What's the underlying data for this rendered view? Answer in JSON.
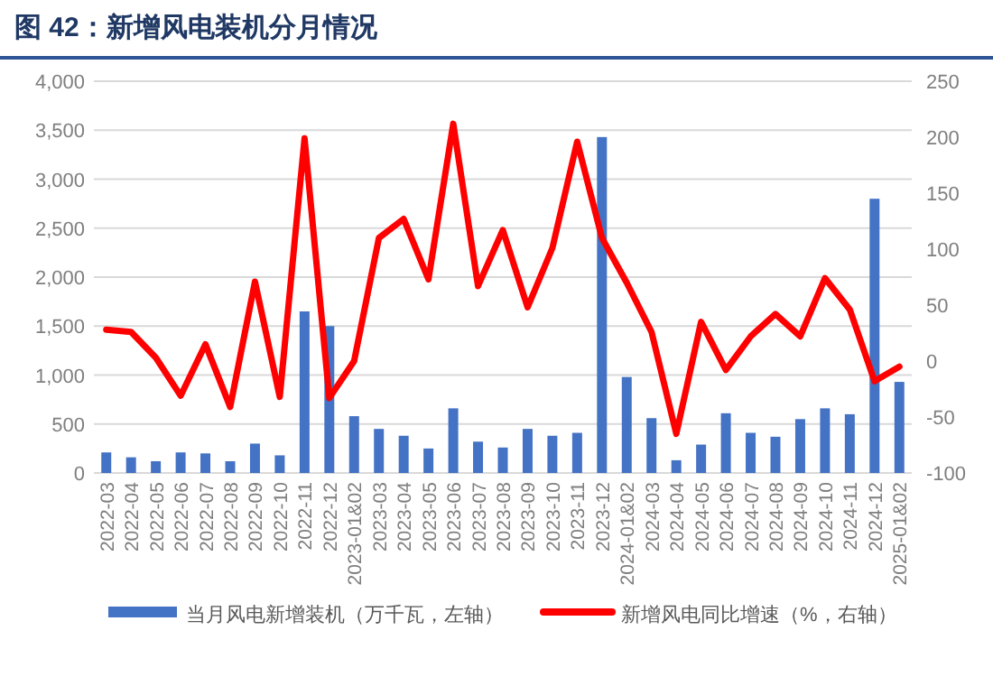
{
  "chart_data": {
    "type": "bar",
    "title": "图 42：新增风电装机分月情况",
    "categories": [
      "2022-03",
      "2022-04",
      "2022-05",
      "2022-06",
      "2022-07",
      "2022-08",
      "2022-09",
      "2022-10",
      "2022-11",
      "2022-12",
      "2023-01&02",
      "2023-03",
      "2023-04",
      "2023-05",
      "2023-06",
      "2023-07",
      "2023-08",
      "2023-09",
      "2023-10",
      "2023-11",
      "2023-12",
      "2024-01&02",
      "2024-03",
      "2024-04",
      "2024-05",
      "2024-06",
      "2024-07",
      "2024-08",
      "2024-09",
      "2024-10",
      "2024-11",
      "2024-12",
      "2025-01&02"
    ],
    "series": [
      {
        "name": "当月风电新增装机（万千瓦，左轴）",
        "color": "#4472c4",
        "values": [
          210,
          160,
          120,
          210,
          200,
          120,
          300,
          180,
          1650,
          1500,
          580,
          450,
          380,
          250,
          660,
          320,
          260,
          450,
          380,
          410,
          3430,
          980,
          560,
          130,
          290,
          610,
          410,
          370,
          550,
          660,
          600,
          2800,
          930
        ]
      },
      {
        "name": "新增风电同比增速（%，右轴）",
        "type": "line",
        "axis": "y2",
        "color": "#ff0000",
        "values": [
          28,
          26,
          3,
          -31,
          15,
          -41,
          71,
          -32,
          199,
          -33,
          0,
          110,
          127,
          73,
          212,
          67,
          117,
          48,
          101,
          196,
          110,
          70,
          26,
          -65,
          35,
          -8,
          22,
          42,
          22,
          74,
          46,
          -18,
          -5
        ]
      }
    ],
    "ylim": [
      0,
      4000
    ],
    "yticks": [
      {
        "value": 0,
        "label": "0"
      },
      {
        "value": 500,
        "label": "500"
      },
      {
        "value": 1000,
        "label": "1,000"
      },
      {
        "value": 1500,
        "label": "1,500"
      },
      {
        "value": 2000,
        "label": "2,000"
      },
      {
        "value": 2500,
        "label": "2,500"
      },
      {
        "value": 3000,
        "label": "3,000"
      },
      {
        "value": 3500,
        "label": "3,500"
      },
      {
        "value": 4000,
        "label": "4,000"
      }
    ],
    "y2lim": [
      -100,
      250
    ],
    "y2ticks": [
      -100,
      -50,
      0,
      50,
      100,
      150,
      200,
      250
    ],
    "grid": "y",
    "legend": "bottom",
    "marker": "none",
    "line_style": "solid"
  }
}
